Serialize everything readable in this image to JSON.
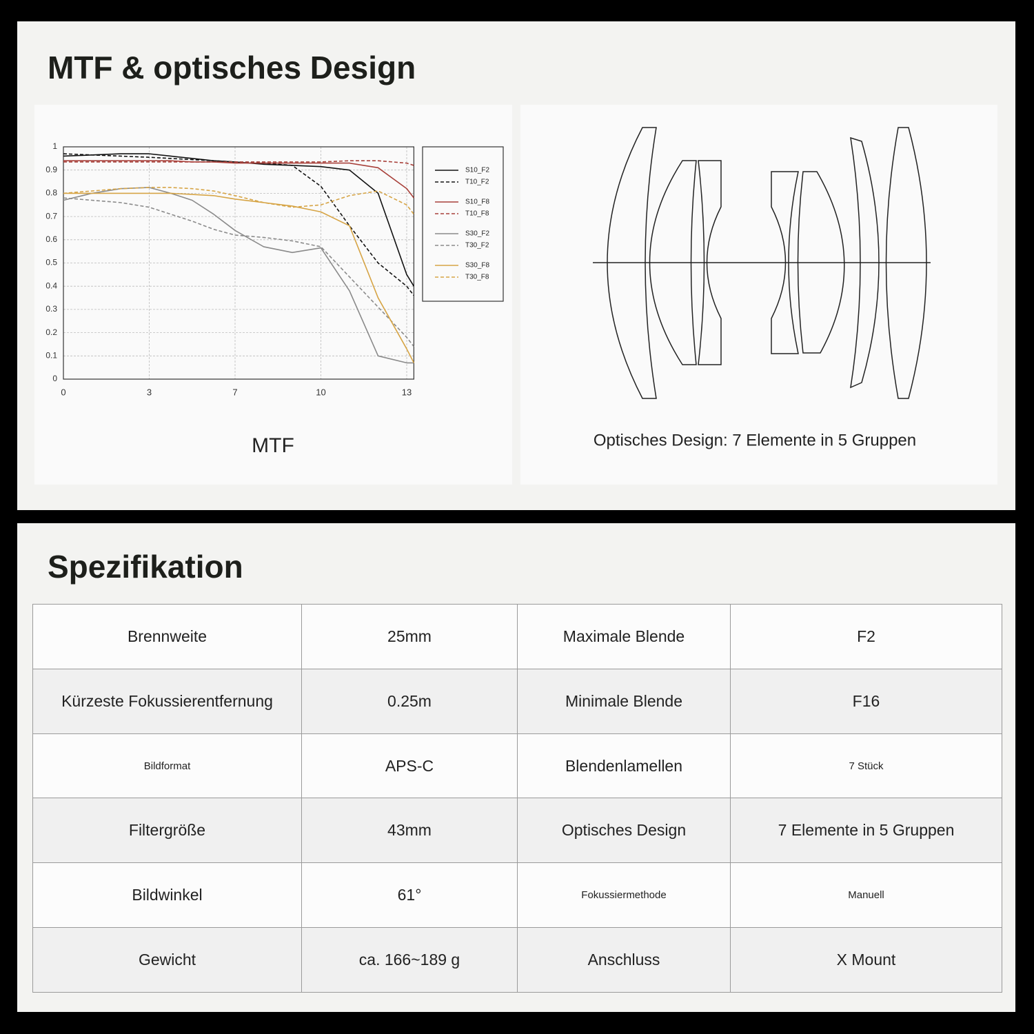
{
  "header": {
    "title": "MTF & optisches Design"
  },
  "chart_data": {
    "type": "line",
    "caption": "MTF",
    "x": [
      0,
      1,
      2,
      3,
      4,
      5,
      6,
      7,
      8,
      9,
      10,
      11,
      12,
      13,
      13.25
    ],
    "xlim": [
      0,
      13.25
    ],
    "xticks": [
      0,
      3,
      7,
      10,
      13
    ],
    "ylim": [
      0,
      1
    ],
    "yticks": [
      0,
      0.1,
      0.2,
      0.3,
      0.4,
      0.5,
      0.6,
      0.7,
      0.8,
      0.9,
      1
    ],
    "grid": true,
    "series": [
      {
        "name": "S10_F2",
        "color": "#111111",
        "dashed": false,
        "values": [
          0.96,
          0.965,
          0.97,
          0.97,
          0.96,
          0.95,
          0.94,
          0.935,
          0.925,
          0.92,
          0.915,
          0.9,
          0.8,
          0.45,
          0.4
        ]
      },
      {
        "name": "T10_F2",
        "color": "#111111",
        "dashed": true,
        "values": [
          0.97,
          0.965,
          0.96,
          0.955,
          0.95,
          0.945,
          0.94,
          0.935,
          0.93,
          0.92,
          0.83,
          0.66,
          0.5,
          0.4,
          0.36
        ]
      },
      {
        "name": "S10_F8",
        "color": "#a8403a",
        "dashed": false,
        "values": [
          0.94,
          0.94,
          0.94,
          0.94,
          0.94,
          0.935,
          0.935,
          0.93,
          0.93,
          0.93,
          0.93,
          0.93,
          0.91,
          0.82,
          0.78
        ]
      },
      {
        "name": "T10_F8",
        "color": "#a8403a",
        "dashed": true,
        "values": [
          0.935,
          0.935,
          0.935,
          0.935,
          0.935,
          0.935,
          0.935,
          0.935,
          0.935,
          0.935,
          0.935,
          0.94,
          0.94,
          0.93,
          0.92
        ]
      },
      {
        "name": "S30_F2",
        "color": "#8a8a8a",
        "dashed": false,
        "values": [
          0.77,
          0.8,
          0.82,
          0.825,
          0.8,
          0.77,
          0.71,
          0.64,
          0.57,
          0.545,
          0.565,
          0.38,
          0.1,
          0.07,
          0.07
        ]
      },
      {
        "name": "T30_F2",
        "color": "#8a8a8a",
        "dashed": true,
        "values": [
          0.78,
          0.77,
          0.76,
          0.74,
          0.71,
          0.68,
          0.645,
          0.62,
          0.61,
          0.595,
          0.57,
          0.44,
          0.31,
          0.18,
          0.14
        ]
      },
      {
        "name": "S30_F8",
        "color": "#d6a445",
        "dashed": false,
        "values": [
          0.8,
          0.8,
          0.8,
          0.8,
          0.8,
          0.795,
          0.79,
          0.775,
          0.76,
          0.745,
          0.72,
          0.66,
          0.35,
          0.13,
          0.07
        ]
      },
      {
        "name": "T30_F8",
        "color": "#d6a445",
        "dashed": true,
        "values": [
          0.8,
          0.81,
          0.82,
          0.825,
          0.825,
          0.82,
          0.81,
          0.79,
          0.76,
          0.74,
          0.75,
          0.79,
          0.81,
          0.75,
          0.71
        ]
      }
    ]
  },
  "optics": {
    "caption": "Optisches Design: 7 Elemente in 5 Gruppen"
  },
  "spec": {
    "title": "Spezifikation",
    "rows": [
      [
        "Brennweite",
        "25mm",
        "Maximale Blende",
        "F2"
      ],
      [
        "Kürzeste Fokussierentfernung",
        "0.25m",
        "Minimale Blende",
        "F16"
      ],
      [
        "Bildformat",
        "APS-C",
        "Blendenlamellen",
        "7 Stück"
      ],
      [
        "Filtergröße",
        "43mm",
        "Optisches Design",
        "7 Elemente in 5 Gruppen"
      ],
      [
        "Bildwinkel",
        "61°",
        "Fokussiermethode",
        "Manuell"
      ],
      [
        "Gewicht",
        "ca. 166~189 g",
        "Anschluss",
        "X Mount"
      ]
    ]
  }
}
